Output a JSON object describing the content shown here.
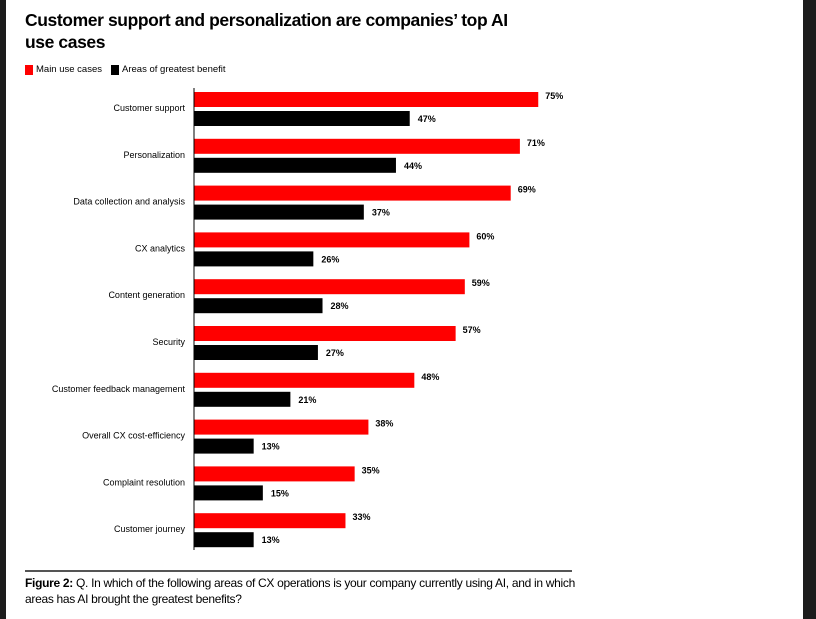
{
  "chart_data": {
    "type": "bar",
    "orientation": "horizontal",
    "title": "Customer support and personalization are companies’ top AI use cases",
    "categories": [
      "Customer support",
      "Personalization",
      "Data collection and analysis",
      "CX analytics",
      "Content generation",
      "Security",
      "Customer feedback management",
      "Overall CX cost-efficiency",
      "Complaint resolution",
      "Customer journey"
    ],
    "series": [
      {
        "name": "Main use cases",
        "color": "#ff0000",
        "values": [
          75,
          71,
          69,
          60,
          59,
          57,
          48,
          38,
          35,
          33
        ]
      },
      {
        "name": "Areas of greatest benefit",
        "color": "#000000",
        "values": [
          47,
          44,
          37,
          26,
          28,
          27,
          21,
          13,
          15,
          13
        ]
      }
    ],
    "value_format": "%",
    "xlim": [
      0,
      100
    ],
    "grid": false,
    "legend": "top-left"
  },
  "caption": {
    "label": "Figure 2:",
    "text": " Q. In which of the following areas of CX operations is your company currently using AI, and in which areas has AI brought the greatest benefits?"
  }
}
